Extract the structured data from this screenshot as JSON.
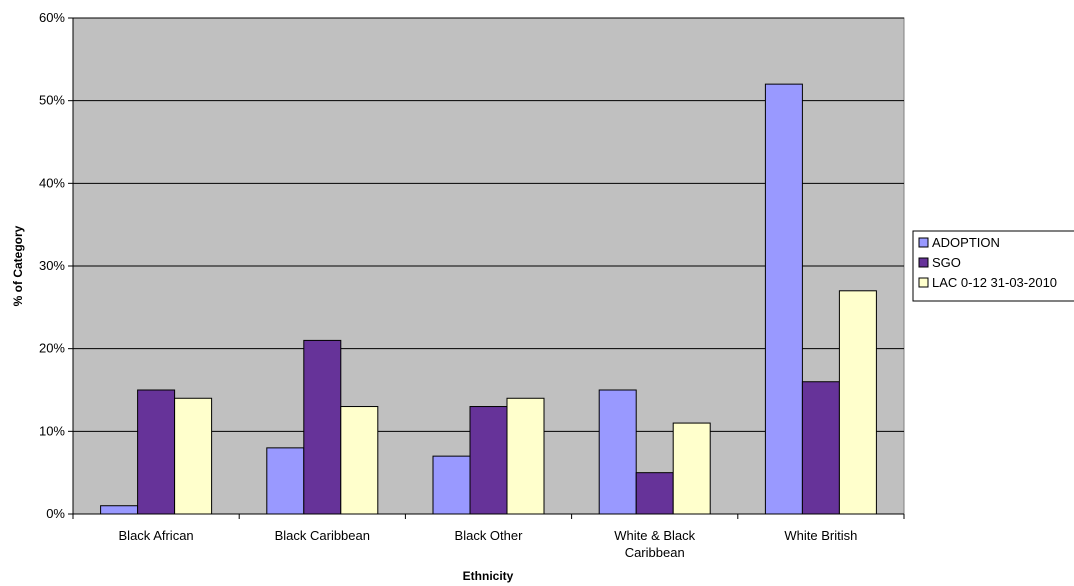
{
  "chart_data": {
    "type": "bar",
    "title": "",
    "xlabel": "Ethnicity",
    "ylabel": "% of Category",
    "categories": [
      [
        "Black African"
      ],
      [
        "Black Caribbean"
      ],
      [
        "Black Other"
      ],
      [
        "White & Black",
        "Caribbean"
      ],
      [
        "White British"
      ]
    ],
    "series": [
      {
        "name": "ADOPTION",
        "color": "#9999ff",
        "values": [
          1,
          8,
          7,
          15,
          52
        ]
      },
      {
        "name": "SGO",
        "color": "#663399",
        "values": [
          15,
          21,
          13,
          5,
          16
        ]
      },
      {
        "name": "LAC 0-12 31-03-2010",
        "color": "#ffffcc",
        "values": [
          14,
          13,
          14,
          11,
          27
        ]
      }
    ],
    "yticks": [
      "0%",
      "10%",
      "20%",
      "30%",
      "40%",
      "50%",
      "60%"
    ],
    "ylim": [
      0,
      60
    ],
    "grid": true,
    "legend_position": "right",
    "plot_background": "#c0c0c0"
  }
}
